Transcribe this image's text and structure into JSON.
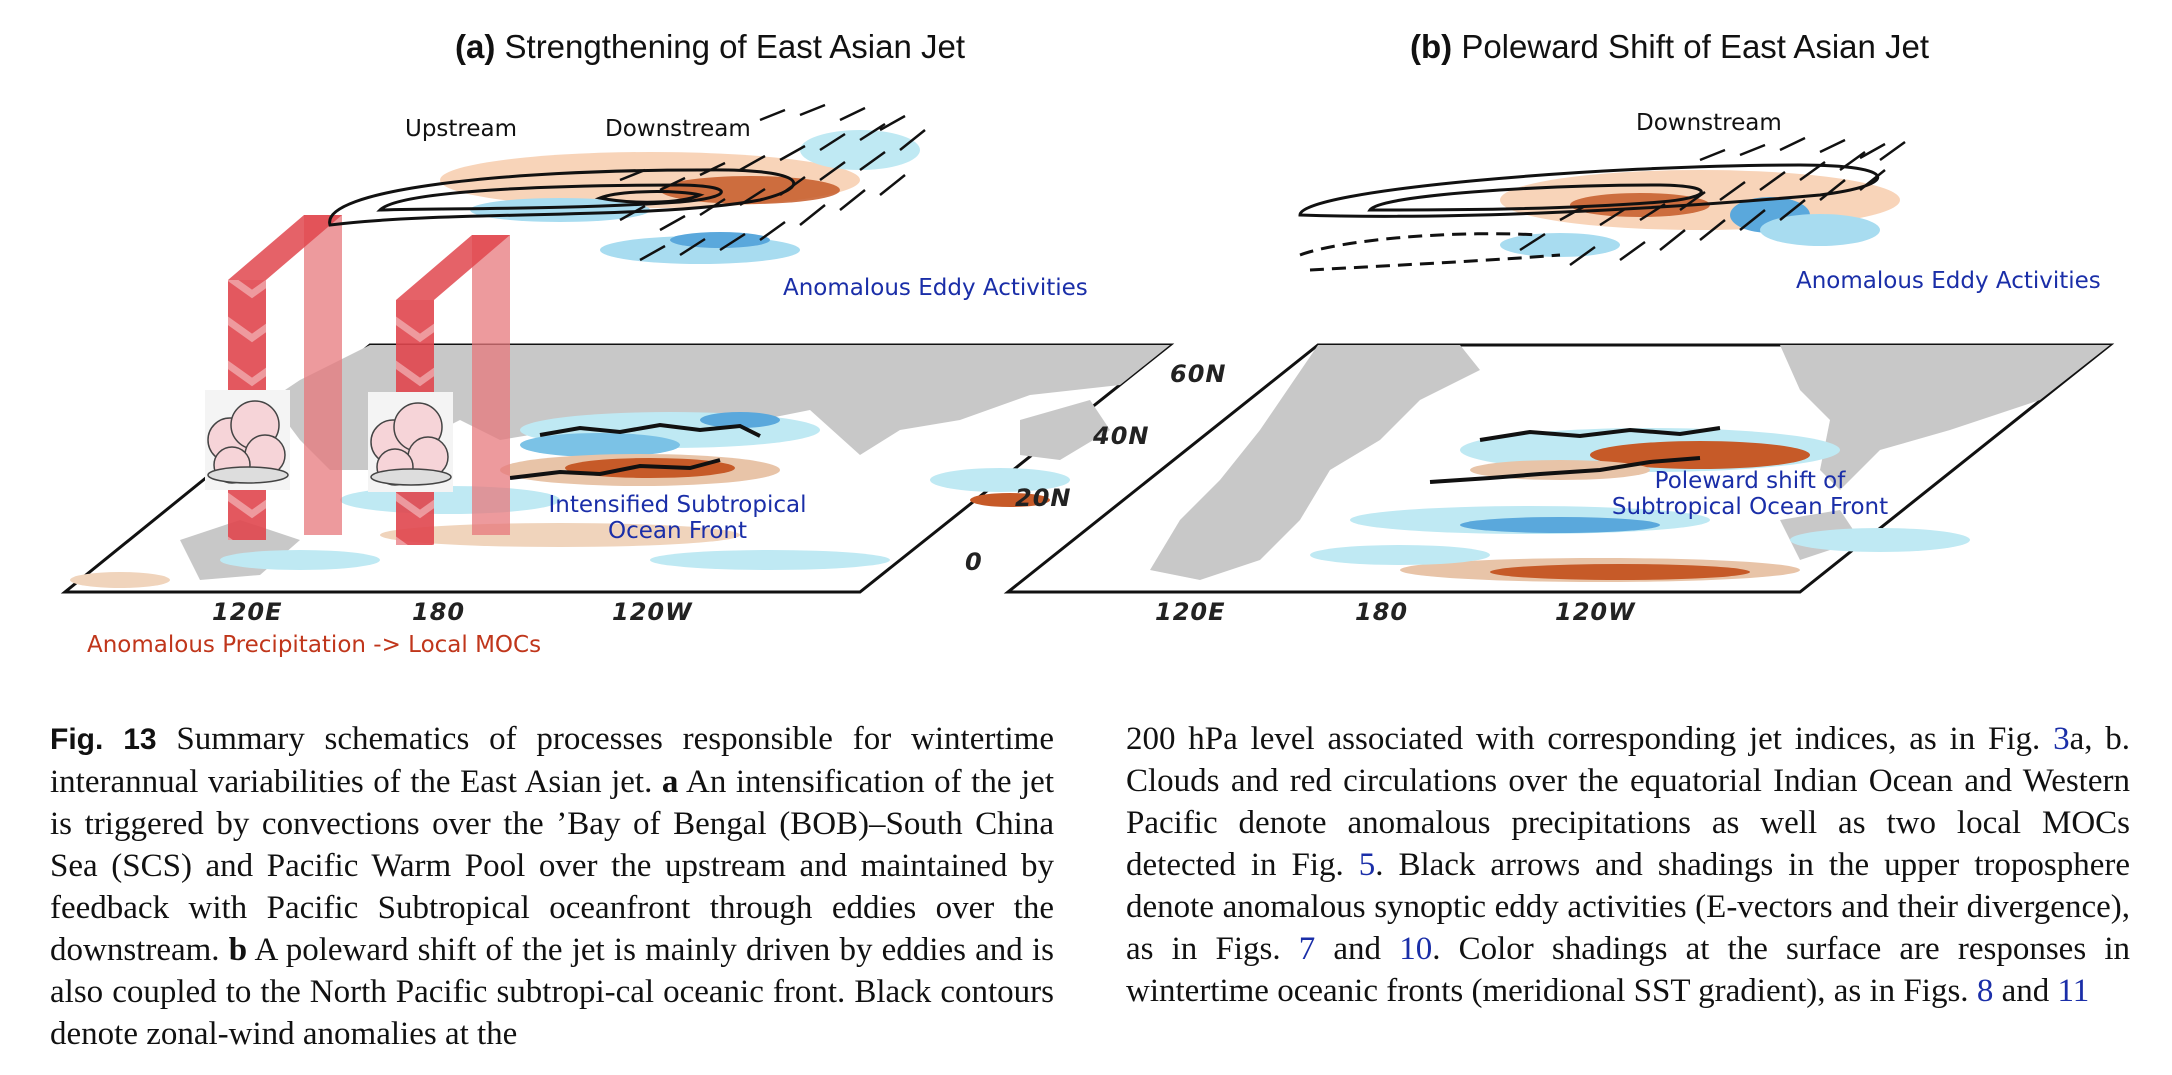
{
  "panel_a": {
    "letter": "(a)",
    "title": "Strengthening of East Asian Jet",
    "upstream": "Upstream",
    "downstream": "Downstream",
    "eddy": "Anomalous Eddy Activities",
    "front_line1": "Intensified Subtropical",
    "front_line2": "Ocean Front",
    "precip": "Anomalous Precipitation -> Local MOCs",
    "lon_labels": [
      "120E",
      "180",
      "120W"
    ],
    "lat_labels": [
      "60N",
      "40N",
      "20N",
      "0"
    ]
  },
  "panel_b": {
    "letter": "(b)",
    "title": "Poleward Shift of East Asian Jet",
    "downstream": "Downstream",
    "eddy": "Anomalous Eddy Activities",
    "front_line1": "Poleward shift of",
    "front_line2": "Subtropical Ocean Front",
    "lon_labels": [
      "120E",
      "180",
      "120W"
    ]
  },
  "colors": {
    "label_blue": "#1a2ea8",
    "label_red": "#c0361b",
    "land_gray": "#c8c8c8",
    "anomaly_warm": "#c65a28",
    "anomaly_cool": "#5aa8dc",
    "moc_red": "#e0464e"
  },
  "caption": {
    "fig_no": "Fig. 13",
    "left_p1": " Summary schematics of processes responsible for wintertime interannual variabilities of the East Asian jet. ",
    "a_letter": "a",
    "left_p2": " An intensification of the jet is triggered by convections over the ’Bay of Bengal (BOB)–South China Sea (SCS) and Pacific Warm Pool over the upstream and maintained by feedback with Pacific Subtropical oceanfront through eddies over the downstream. ",
    "b_letter": "b",
    "left_p3": " A poleward shift of the jet is mainly driven by eddies and is also coupled to the North Pacific subtropi-cal oceanic front. Black contours denote zonal-wind anomalies at the",
    "right_p1": "200 hPa level associated with corresponding jet indices, as in Fig. ",
    "ref_3": "3",
    "right_p2": "a, b. Clouds and red circulations over the equatorial Indian Ocean and Western Pacific denote anomalous precipitations as well as two local MOCs detected in Fig. ",
    "ref_5": "5",
    "right_p3": ". Black arrows and shadings in the upper troposphere denote anomalous synoptic eddy activities (E-vectors and their divergence), as in Figs. ",
    "ref_7": "7",
    "right_and1": " and ",
    "ref_10": "10",
    "right_p4": ". Color shadings at the surface are responses in wintertime oceanic fronts (meridional SST gradient), as in Figs. ",
    "ref_8": "8",
    "right_and2": " and ",
    "ref_11": "11"
  }
}
